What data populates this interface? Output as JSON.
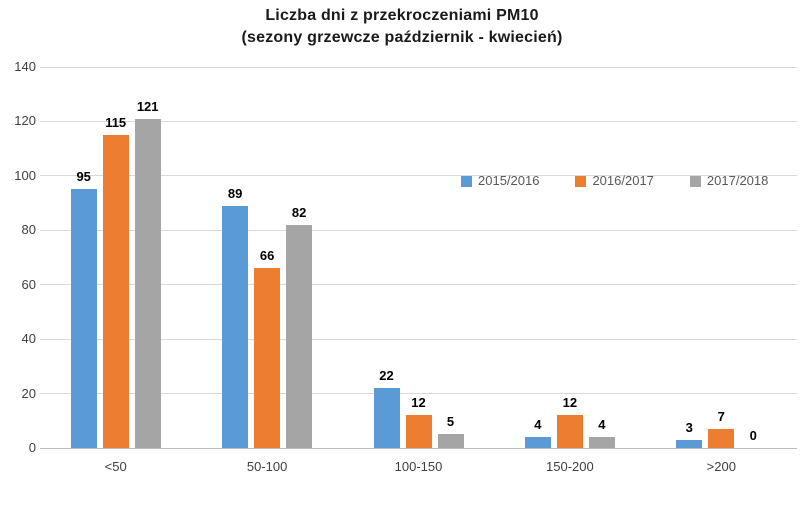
{
  "chart_data": {
    "type": "bar",
    "title": "Liczba dni z przekroczeniami PM10",
    "subtitle": "(sezony grzewcze październik - kwiecień)",
    "categories": [
      "<50",
      "50-100",
      "100-150",
      "150-200",
      ">200"
    ],
    "series": [
      {
        "name": "2015/2016",
        "color": "#5B9BD5",
        "values": [
          95,
          89,
          22,
          4,
          3
        ]
      },
      {
        "name": "2016/2017",
        "color": "#ED7D31",
        "values": [
          115,
          66,
          12,
          12,
          7
        ]
      },
      {
        "name": "2017/2018",
        "color": "#A5A5A5",
        "values": [
          121,
          82,
          5,
          4,
          0
        ]
      }
    ],
    "ylim": [
      0,
      140
    ],
    "yticks": [
      0,
      20,
      40,
      60,
      80,
      100,
      120,
      140
    ],
    "grid": true,
    "legend_position": "inside-top-right",
    "data_labels": true
  },
  "colors": {
    "background": "#ffffff",
    "gridline": "#D9D9D9",
    "axis_line": "#BFBFBF",
    "axis_text": "#404040",
    "value_label_text": "#000000",
    "legend_text": "#595959"
  }
}
